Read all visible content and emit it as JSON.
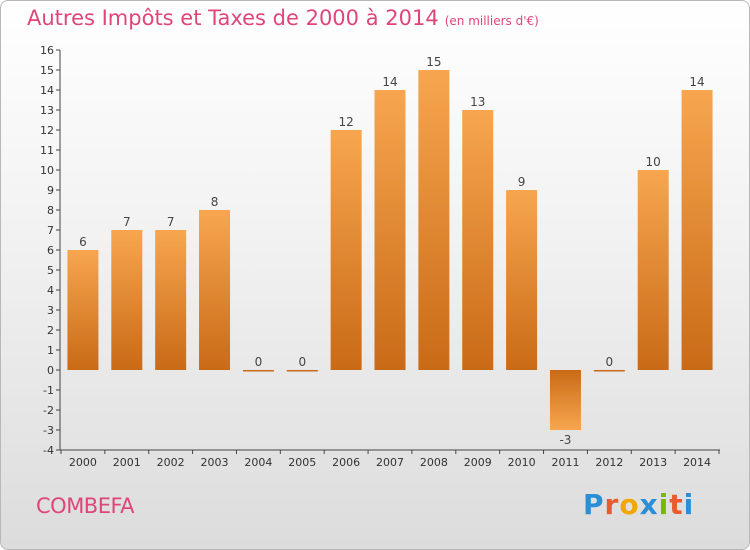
{
  "header": {
    "title": "Autres Impôts et Taxes de 2000 à 2014",
    "unit": "(en milliers d'€)"
  },
  "footer": {
    "commune": "COMBEFA",
    "logo_text": "Proxiti"
  },
  "colors": {
    "title": "#e0457a",
    "bar_light": "#f7a64f",
    "bar_dark": "#c96a17",
    "axis": "#444444"
  },
  "chart_data": {
    "type": "bar",
    "title": "Autres Impôts et Taxes de 2000 à 2014",
    "subtitle": "(en milliers d'€)",
    "xlabel": "",
    "ylabel": "",
    "categories": [
      "2000",
      "2001",
      "2002",
      "2003",
      "2004",
      "2005",
      "2006",
      "2007",
      "2008",
      "2009",
      "2010",
      "2011",
      "2012",
      "2013",
      "2014"
    ],
    "values": [
      6,
      7,
      7,
      8,
      0,
      0,
      12,
      14,
      15,
      13,
      9,
      -3,
      0,
      10,
      14
    ],
    "data_labels": [
      "6",
      "7",
      "7",
      "8",
      "0",
      "0",
      "12",
      "14",
      "15",
      "13",
      "9",
      "-3",
      "0",
      "10",
      "14"
    ],
    "yticks": [
      "16",
      "15",
      "14",
      "13",
      "12",
      "11",
      "10",
      "9",
      "8",
      "7",
      "6",
      "5",
      "4",
      "3",
      "2",
      "1",
      "0",
      "-1",
      "-2",
      "-3",
      "-4"
    ],
    "ylim": [
      -4,
      16
    ],
    "grid": false,
    "legend": "none"
  }
}
